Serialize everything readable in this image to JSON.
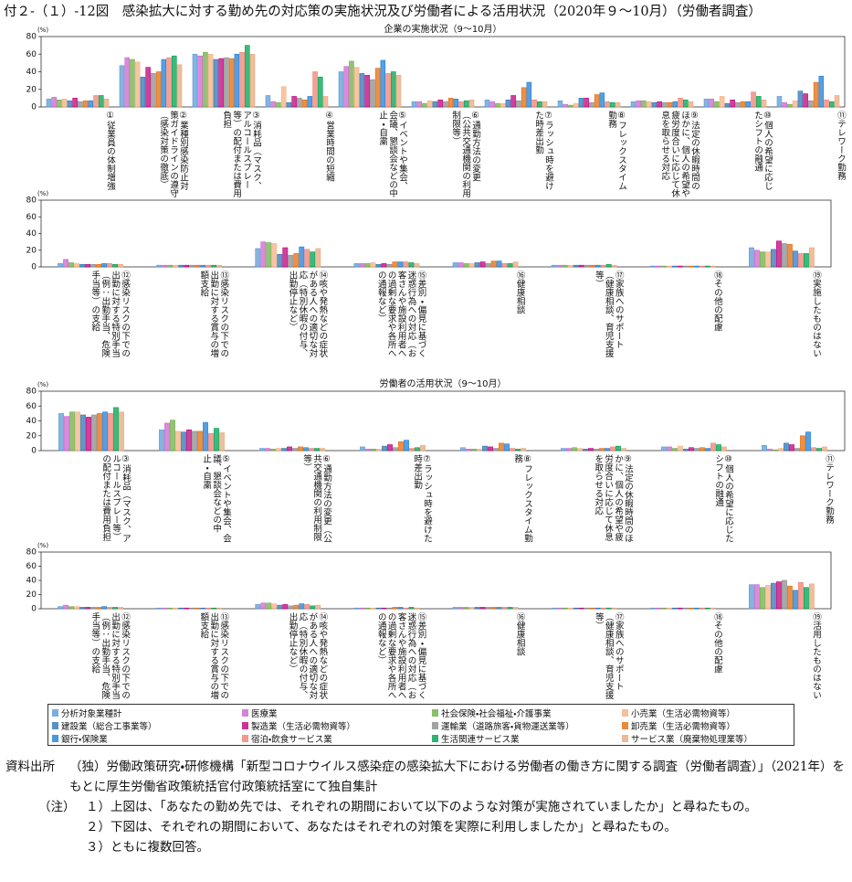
{
  "title": "付２-（１）-12図　感染拡大に対する勤め先の対応策の実施状況及び労働者による活用状況（2020年９～10月）（労働者調査）",
  "legend": [
    {
      "name": "分析対象業種計",
      "color": "#5b9bd5"
    },
    {
      "name": "医療業",
      "color": "#cc66cc"
    },
    {
      "name": "社会保険・社会福祉・介護事業",
      "color": "#70ad47"
    },
    {
      "name": "小売業（生活必需物資等）",
      "color": "#f4b183"
    },
    {
      "name": "建設業（総合工事業等）",
      "color": "#2e75b6"
    },
    {
      "name": "製造業（生活必需物資等）",
      "color": "#c0007a"
    },
    {
      "name": "運輸業（道路旅客・貨物運送業等）",
      "color": "#8c8c8c"
    },
    {
      "name": "卸売業（生活必需物資等）",
      "color": "#e46c0a"
    },
    {
      "name": "銀行・保険業",
      "color": "#1f7fd8"
    },
    {
      "name": "宿泊・飲食サービス業",
      "color": "#f08070"
    },
    {
      "name": "生活関連サービス業",
      "color": "#00a050"
    },
    {
      "name": "サービス業（廃棄物処理業等）",
      "color": "#e8a87c"
    }
  ],
  "chart_data": [
    {
      "type": "bar",
      "title": "企業の実施状況（9～10月）",
      "unit": "(%)",
      "ylim": [
        0,
        80
      ],
      "yticks": [
        0,
        20,
        40,
        60,
        80
      ],
      "categories": [
        "①従業員の体制増強",
        "②業種別感染防止対策ガイドラインの遵守（感染対策の徹底）",
        "③消耗品（マスク、アルコールスプレー等）の配付または費用負担",
        "④営業時間の短縮",
        "⑤イベントや集会、会議、懇談会などの中止・自粛",
        "⑥通勤方法の変更（公共交通機関の利用制限等）",
        "⑦ラッシュ時を避けた時差出勤",
        "⑧フレックスタイム勤務",
        "⑨法定の休暇時間のほかに、個人の希望や疲労度合いに応じて休息を取らせる対応",
        "⑩個人の希望に応じたシフトの融通",
        "⑪テレワーク勤務"
      ],
      "series": [
        {
          "values": [
            9,
            47,
            60,
            13,
            40,
            6,
            8,
            7,
            6,
            9,
            12
          ]
        },
        {
          "values": [
            11,
            56,
            58,
            6,
            46,
            6,
            6,
            3,
            7,
            9,
            5
          ]
        },
        {
          "values": [
            8,
            54,
            62,
            5,
            52,
            4,
            4,
            2,
            7,
            6,
            3
          ]
        },
        {
          "values": [
            9,
            51,
            60,
            23,
            45,
            7,
            4,
            4,
            6,
            12,
            7
          ]
        },
        {
          "values": [
            7,
            34,
            54,
            5,
            38,
            6,
            8,
            10,
            5,
            4,
            18
          ]
        },
        {
          "values": [
            10,
            45,
            55,
            12,
            36,
            8,
            13,
            10,
            6,
            8,
            15
          ]
        },
        {
          "values": [
            6,
            38,
            56,
            10,
            31,
            6,
            7,
            5,
            5,
            5,
            7
          ]
        },
        {
          "values": [
            7,
            40,
            55,
            8,
            44,
            10,
            22,
            14,
            5,
            6,
            28
          ]
        },
        {
          "values": [
            7,
            54,
            60,
            12,
            53,
            9,
            28,
            16,
            6,
            6,
            35
          ]
        },
        {
          "values": [
            13,
            56,
            62,
            40,
            38,
            6,
            8,
            6,
            10,
            17,
            8
          ]
        },
        {
          "values": [
            13,
            58,
            70,
            34,
            40,
            7,
            6,
            5,
            8,
            12,
            6
          ]
        },
        {
          "values": [
            9,
            48,
            60,
            12,
            36,
            8,
            6,
            5,
            6,
            8,
            13
          ]
        }
      ]
    },
    {
      "type": "bar",
      "unit": "(%)",
      "ylim": [
        0,
        80
      ],
      "yticks": [
        0,
        20,
        40,
        60,
        80
      ],
      "categories": [
        "⑫感染リスクの下での出勤に対する特別手当（例：出勤手当、危険手当等）の支給",
        "⑬感染リスクの下での出勤に対する賞与の増額支給",
        "⑭咳や発熱などの症状がある人への適切な対応（特別休暇の付与、出勤停止など）",
        "⑮差別・偏見に基づく迷惑行為への対応（お客さんや施設利用者への過剰な要求や各所への通報など）",
        "⑯健康相談",
        "⑰家族へのサポート（健康相談、育児支援等）",
        "⑱その他の配慮",
        "⑲実施したものはない"
      ],
      "series": [
        {
          "values": [
            4,
            2,
            22,
            4,
            5,
            2,
            1,
            23
          ]
        },
        {
          "values": [
            9,
            2,
            30,
            4,
            5,
            2,
            1,
            20
          ]
        },
        {
          "values": [
            5,
            2,
            29,
            4,
            4,
            2,
            1,
            18
          ]
        },
        {
          "values": [
            4,
            2,
            28,
            5,
            4,
            2,
            1,
            18
          ]
        },
        {
          "values": [
            3,
            2,
            15,
            3,
            5,
            2,
            1,
            21
          ]
        },
        {
          "values": [
            3,
            2,
            23,
            4,
            6,
            2,
            1,
            31
          ]
        },
        {
          "values": [
            3,
            2,
            14,
            3,
            4,
            2,
            1,
            28
          ]
        },
        {
          "values": [
            3,
            2,
            16,
            6,
            7,
            2,
            1,
            27
          ]
        },
        {
          "values": [
            4,
            2,
            24,
            6,
            7,
            2,
            1,
            19
          ]
        },
        {
          "values": [
            4,
            2,
            21,
            6,
            4,
            2,
            1,
            16
          ]
        },
        {
          "values": [
            3,
            2,
            18,
            5,
            4,
            3,
            1,
            16
          ]
        },
        {
          "values": [
            3,
            2,
            22,
            4,
            6,
            2,
            1,
            23
          ]
        }
      ]
    },
    {
      "type": "bar",
      "title": "労働者の活用状況（9～10月）",
      "unit": "(%)",
      "ylim": [
        0,
        80
      ],
      "yticks": [
        0,
        20,
        40,
        60,
        80
      ],
      "categories": [
        "③消耗品（マスク、アルコールスプレー等）の配付または費用負担",
        "⑤イベントや集会、会議、懇談会などの中止・自粛",
        "⑥通勤方法の変更（公共交通機関の利用制限等）",
        "⑦ラッシュ時を避けた時差出勤",
        "⑧フレックスタイム勤務",
        "⑨法定の休暇時間のほかに、個人の希望や疲労度合いに応じて休息を取らせる対応",
        "⑩個人の希望に応じたシフトの融通",
        "⑪テレワーク勤務"
      ],
      "series": [
        {
          "values": [
            50,
            28,
            3,
            5,
            4,
            3,
            5,
            7
          ]
        },
        {
          "values": [
            46,
            37,
            3,
            2,
            2,
            3,
            5,
            2
          ]
        },
        {
          "values": [
            52,
            41,
            2,
            2,
            2,
            4,
            3,
            1
          ]
        },
        {
          "values": [
            52,
            26,
            3,
            2,
            2,
            3,
            6,
            3
          ]
        },
        {
          "values": [
            48,
            25,
            3,
            6,
            6,
            2,
            2,
            10
          ]
        },
        {
          "values": [
            45,
            28,
            5,
            8,
            5,
            3,
            4,
            8
          ]
        },
        {
          "values": [
            48,
            26,
            3,
            4,
            3,
            2,
            3,
            3
          ]
        },
        {
          "values": [
            50,
            26,
            5,
            12,
            10,
            3,
            4,
            20
          ]
        },
        {
          "values": [
            52,
            38,
            4,
            14,
            9,
            3,
            3,
            25
          ]
        },
        {
          "values": [
            50,
            23,
            3,
            3,
            3,
            5,
            10,
            4
          ]
        },
        {
          "values": [
            58,
            30,
            3,
            4,
            2,
            6,
            8,
            3
          ]
        },
        {
          "values": [
            52,
            24,
            3,
            7,
            3,
            3,
            5,
            5
          ]
        }
      ]
    },
    {
      "type": "bar",
      "unit": "(%)",
      "ylim": [
        0,
        80
      ],
      "yticks": [
        0,
        20,
        40,
        60,
        80
      ],
      "categories": [
        "⑫感染リスクの下での出勤に対する特別手当（例：出勤手当、危険手当等）の支給",
        "⑬感染リスクの下での出勤に対する賞与の増額支給",
        "⑭咳や発熱などの症状がある人への適切な対応（特別休暇の付与、出勤停止など）",
        "⑮差別・偏見に基づく迷惑行為への対応（お客さんや施設利用者への過剰な要求や各所への通報など）",
        "⑯健康相談",
        "⑰家族へのサポート（健康相談、育児支援等）",
        "⑱その他の配慮",
        "⑲活用したものはない"
      ],
      "series": [
        {
          "values": [
            3,
            1,
            6,
            1,
            2,
            1,
            1,
            34
          ]
        },
        {
          "values": [
            5,
            1,
            8,
            1,
            2,
            1,
            1,
            34
          ]
        },
        {
          "values": [
            3,
            1,
            8,
            1,
            2,
            1,
            1,
            30
          ]
        },
        {
          "values": [
            3,
            1,
            7,
            1,
            2,
            1,
            1,
            33
          ]
        },
        {
          "values": [
            2,
            1,
            5,
            1,
            2,
            1,
            1,
            36
          ]
        },
        {
          "values": [
            2,
            1,
            6,
            1,
            2,
            1,
            1,
            38
          ]
        },
        {
          "values": [
            2,
            1,
            4,
            1,
            2,
            1,
            1,
            40
          ]
        },
        {
          "values": [
            2,
            1,
            5,
            2,
            2,
            1,
            1,
            32
          ]
        },
        {
          "values": [
            3,
            1,
            7,
            2,
            2,
            1,
            1,
            26
          ]
        },
        {
          "values": [
            2,
            1,
            6,
            1,
            2,
            1,
            1,
            37
          ]
        },
        {
          "values": [
            2,
            1,
            4,
            2,
            2,
            1,
            1,
            30
          ]
        },
        {
          "values": [
            2,
            1,
            5,
            1,
            2,
            1,
            1,
            35
          ]
        }
      ]
    }
  ],
  "footer": {
    "source_label": "資料出所",
    "source": "（独）労働政策研究・研修機構「新型コロナウイルス感染症の感染拡大下における労働者の働き方に関する調査（労働者調査）」（2021年）をもとに厚生労働省政策統括官付政策統括室にて独自集計",
    "note_label": "（注）",
    "notes": [
      "１）上図は、「あなたの勤め先では、それぞれの期間において以下のような対策が実施されていましたか」と尋ねたもの。",
      "２）下図は、それぞれの期間において、あなたはそれぞれの対策を実際に利用しましたか」と尋ねたもの。",
      "３）ともに複数回答。"
    ]
  }
}
